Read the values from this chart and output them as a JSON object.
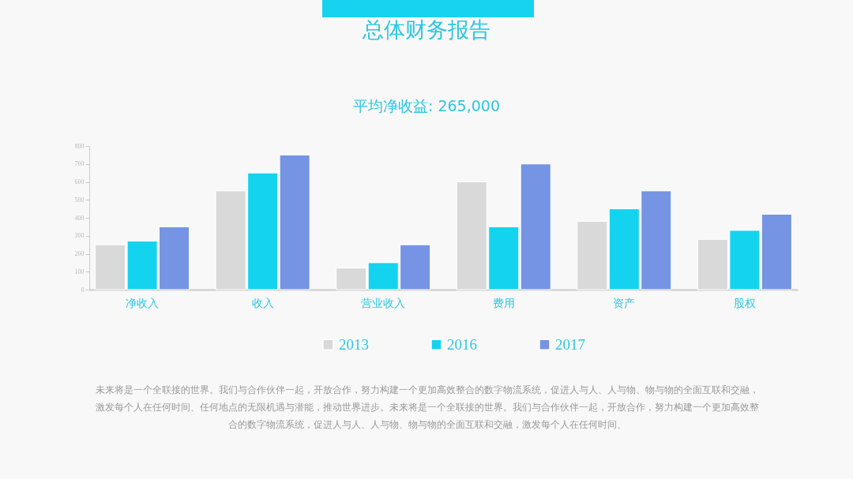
{
  "chart_data": {
    "type": "bar",
    "title": "总体财务报告",
    "subtitle": "平均净收益: 265,000",
    "categories": [
      "净收入",
      "收入",
      "营业收入",
      "费用",
      "资产",
      "股权"
    ],
    "series": [
      {
        "name": "2013",
        "color": "#d9d9d9",
        "values": [
          250,
          550,
          120,
          600,
          380,
          280
        ]
      },
      {
        "name": "2016",
        "color": "#14d3ef",
        "values": [
          270,
          650,
          150,
          350,
          450,
          330
        ]
      },
      {
        "name": "2017",
        "color": "#7694e4",
        "values": [
          350,
          750,
          250,
          700,
          550,
          420
        ]
      }
    ],
    "ylim": [
      0,
      800
    ],
    "yticks": [
      0,
      100,
      200,
      300,
      400,
      500,
      600,
      700,
      800
    ],
    "legend": "bottom",
    "annotations": [
      "未来将是一个全联接的世界。我们与合作伙伴一起，开放合作，努力构建一个更加高效整合的数字物流系统，促进人与人、人与物、物与物的全面互联和交融，激发每个人在任何时间、任何地点的无限机遇与潜能，推动世界进步。未来将是一个全联接的世界。我们与合作伙伴一起，开放合作，努力构建一个更加高效整合的数字物流系统，促进人与人、人与物、物与物的全面互联和交融，激发每个人在任何时间、"
    ]
  }
}
